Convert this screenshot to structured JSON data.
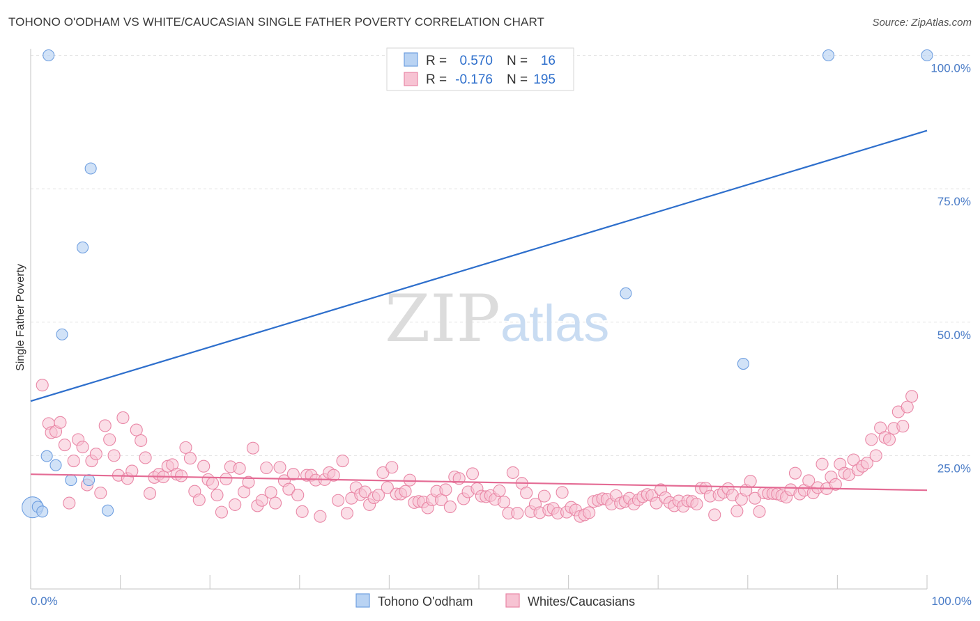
{
  "title": "TOHONO O'ODHAM VS WHITE/CAUCASIAN SINGLE FATHER POVERTY CORRELATION CHART",
  "source": "Source: ZipAtlas.com",
  "watermark": {
    "zip": "ZIP",
    "atlas": "atlas"
  },
  "colors": {
    "blue": "#6f9fe0",
    "blue_fill": "#b9d3f3",
    "blue_line": "#2e6fcc",
    "pink": "#e987a6",
    "pink_fill": "#f7c3d3",
    "pink_line": "#e46b94",
    "tick_text": "#4a7cc7"
  },
  "stats": {
    "r_label": "R =",
    "n_label": "N =",
    "blue": {
      "r": "0.570",
      "n": "16"
    },
    "pink": {
      "r": "-0.176",
      "n": "195"
    }
  },
  "chart_data": {
    "type": "scatter",
    "title": "TOHONO O'ODHAM VS WHITE/CAUCASIAN SINGLE FATHER POVERTY CORRELATION CHART",
    "xlabel": "",
    "ylabel": "Single Father Poverty",
    "xlim": [
      0,
      100
    ],
    "ylim": [
      0,
      100
    ],
    "x_tick_labels": [
      "0.0%",
      "100.0%"
    ],
    "y_ticks": [
      25,
      50,
      75,
      100
    ],
    "y_tick_labels": [
      "25.0%",
      "50.0%",
      "75.0%",
      "100.0%"
    ],
    "grid": true,
    "legend_position": "bottom",
    "series": [
      {
        "name": "Tohono O'odham",
        "color": "#6f9fe0",
        "trend": {
          "x": [
            0,
            100
          ],
          "y": [
            35.2,
            85.9
          ]
        },
        "points": [
          [
            0.2,
            15.3
          ],
          [
            0.8,
            15.4
          ],
          [
            1.3,
            14.5
          ],
          [
            2.0,
            100.0
          ],
          [
            1.8,
            24.9
          ],
          [
            2.8,
            23.2
          ],
          [
            3.5,
            47.7
          ],
          [
            4.5,
            20.4
          ],
          [
            5.8,
            64.0
          ],
          [
            6.5,
            20.4
          ],
          [
            6.7,
            78.8
          ],
          [
            8.6,
            14.7
          ],
          [
            66.4,
            55.4
          ],
          [
            79.5,
            42.2
          ],
          [
            89.0,
            100.0
          ],
          [
            100.0,
            100.0
          ]
        ]
      },
      {
        "name": "Whites/Caucasians",
        "color": "#e987a6",
        "trend": {
          "x": [
            0,
            100
          ],
          "y": [
            21.5,
            18.5
          ]
        },
        "points": [
          [
            1.3,
            38.2
          ],
          [
            2.0,
            31.0
          ],
          [
            2.3,
            29.3
          ],
          [
            2.8,
            29.5
          ],
          [
            3.3,
            31.2
          ],
          [
            3.8,
            27.0
          ],
          [
            4.3,
            16.1
          ],
          [
            4.8,
            24.0
          ],
          [
            5.3,
            28.0
          ],
          [
            5.8,
            26.6
          ],
          [
            6.3,
            19.5
          ],
          [
            6.8,
            24.0
          ],
          [
            7.3,
            25.3
          ],
          [
            7.8,
            18.0
          ],
          [
            8.3,
            30.6
          ],
          [
            8.8,
            28.0
          ],
          [
            9.3,
            25.0
          ],
          [
            9.8,
            21.3
          ],
          [
            10.3,
            32.1
          ],
          [
            10.8,
            20.7
          ],
          [
            11.3,
            22.1
          ],
          [
            11.8,
            29.8
          ],
          [
            12.3,
            27.8
          ],
          [
            12.8,
            24.6
          ],
          [
            13.3,
            17.9
          ],
          [
            13.8,
            20.9
          ],
          [
            14.3,
            21.5
          ],
          [
            14.8,
            21.0
          ],
          [
            15.3,
            23.0
          ],
          [
            15.8,
            23.3
          ],
          [
            16.3,
            21.5
          ],
          [
            16.8,
            21.2
          ],
          [
            17.3,
            26.5
          ],
          [
            17.8,
            24.5
          ],
          [
            18.3,
            18.3
          ],
          [
            18.8,
            16.7
          ],
          [
            19.3,
            23.0
          ],
          [
            19.8,
            20.5
          ],
          [
            20.3,
            19.8
          ],
          [
            20.8,
            17.6
          ],
          [
            21.3,
            14.4
          ],
          [
            21.8,
            20.6
          ],
          [
            22.3,
            22.9
          ],
          [
            22.8,
            15.8
          ],
          [
            23.3,
            22.6
          ],
          [
            23.8,
            18.2
          ],
          [
            24.3,
            20.0
          ],
          [
            24.8,
            26.4
          ],
          [
            25.3,
            15.6
          ],
          [
            25.8,
            16.6
          ],
          [
            26.3,
            22.7
          ],
          [
            26.8,
            18.1
          ],
          [
            27.3,
            16.1
          ],
          [
            27.8,
            22.8
          ],
          [
            28.3,
            20.3
          ],
          [
            28.8,
            18.7
          ],
          [
            29.3,
            21.5
          ],
          [
            29.8,
            17.6
          ],
          [
            30.3,
            14.5
          ],
          [
            30.8,
            21.3
          ],
          [
            31.3,
            21.3
          ],
          [
            31.8,
            20.4
          ],
          [
            32.3,
            13.6
          ],
          [
            32.8,
            20.5
          ],
          [
            33.3,
            21.8
          ],
          [
            33.8,
            21.3
          ],
          [
            34.3,
            16.6
          ],
          [
            34.8,
            24.0
          ],
          [
            35.3,
            14.2
          ],
          [
            35.8,
            17.0
          ],
          [
            36.3,
            19.0
          ],
          [
            36.8,
            17.7
          ],
          [
            37.3,
            18.2
          ],
          [
            37.8,
            15.8
          ],
          [
            38.3,
            17.1
          ],
          [
            38.8,
            17.6
          ],
          [
            39.3,
            21.8
          ],
          [
            39.8,
            19.0
          ],
          [
            40.3,
            22.8
          ],
          [
            40.8,
            17.8
          ],
          [
            41.3,
            17.8
          ],
          [
            41.8,
            18.3
          ],
          [
            42.3,
            20.4
          ],
          [
            42.8,
            16.2
          ],
          [
            43.3,
            16.4
          ],
          [
            43.8,
            16.3
          ],
          [
            44.3,
            15.2
          ],
          [
            44.8,
            16.7
          ],
          [
            45.3,
            18.3
          ],
          [
            45.8,
            16.7
          ],
          [
            46.3,
            18.6
          ],
          [
            46.8,
            15.4
          ],
          [
            47.3,
            21.0
          ],
          [
            47.8,
            20.7
          ],
          [
            48.3,
            16.9
          ],
          [
            48.8,
            18.2
          ],
          [
            49.3,
            21.6
          ],
          [
            49.8,
            18.8
          ],
          [
            50.3,
            17.4
          ],
          [
            50.8,
            17.3
          ],
          [
            51.3,
            17.5
          ],
          [
            51.8,
            16.8
          ],
          [
            52.3,
            18.4
          ],
          [
            52.8,
            16.3
          ],
          [
            53.3,
            14.2
          ],
          [
            53.8,
            21.8
          ],
          [
            54.3,
            14.2
          ],
          [
            54.8,
            19.8
          ],
          [
            55.3,
            18.0
          ],
          [
            55.8,
            14.5
          ],
          [
            56.3,
            15.9
          ],
          [
            56.8,
            14.3
          ],
          [
            57.3,
            17.4
          ],
          [
            57.8,
            14.8
          ],
          [
            58.3,
            15.1
          ],
          [
            58.8,
            14.2
          ],
          [
            59.3,
            18.1
          ],
          [
            59.8,
            14.4
          ],
          [
            60.3,
            15.3
          ],
          [
            60.8,
            14.8
          ],
          [
            61.3,
            13.6
          ],
          [
            61.8,
            13.9
          ],
          [
            62.3,
            14.3
          ],
          [
            62.8,
            16.4
          ],
          [
            63.3,
            16.6
          ],
          [
            63.8,
            16.9
          ],
          [
            64.3,
            16.8
          ],
          [
            64.8,
            15.9
          ],
          [
            65.3,
            17.5
          ],
          [
            65.8,
            16.1
          ],
          [
            66.3,
            16.4
          ],
          [
            66.8,
            17.0
          ],
          [
            67.3,
            15.9
          ],
          [
            67.8,
            16.7
          ],
          [
            68.3,
            17.3
          ],
          [
            68.8,
            17.7
          ],
          [
            69.3,
            17.5
          ],
          [
            69.8,
            16.1
          ],
          [
            70.3,
            18.6
          ],
          [
            70.8,
            17.1
          ],
          [
            71.3,
            16.2
          ],
          [
            71.8,
            15.6
          ],
          [
            72.3,
            16.5
          ],
          [
            72.8,
            15.5
          ],
          [
            73.3,
            16.5
          ],
          [
            73.8,
            16.4
          ],
          [
            74.3,
            15.9
          ],
          [
            74.8,
            18.9
          ],
          [
            75.3,
            18.9
          ],
          [
            75.8,
            17.4
          ],
          [
            76.3,
            13.9
          ],
          [
            76.8,
            17.6
          ],
          [
            77.3,
            18.1
          ],
          [
            77.8,
            18.8
          ],
          [
            78.3,
            17.6
          ],
          [
            78.8,
            14.6
          ],
          [
            79.3,
            16.8
          ],
          [
            79.8,
            18.5
          ],
          [
            80.3,
            20.2
          ],
          [
            80.8,
            17.0
          ],
          [
            81.3,
            14.5
          ],
          [
            81.8,
            18.0
          ],
          [
            82.3,
            17.9
          ],
          [
            82.8,
            17.9
          ],
          [
            83.3,
            17.8
          ],
          [
            83.8,
            17.5
          ],
          [
            84.3,
            17.2
          ],
          [
            84.8,
            18.6
          ],
          [
            85.3,
            21.7
          ],
          [
            85.8,
            17.8
          ],
          [
            86.3,
            18.5
          ],
          [
            86.8,
            20.3
          ],
          [
            87.3,
            18.0
          ],
          [
            87.8,
            19.0
          ],
          [
            88.3,
            23.4
          ],
          [
            88.8,
            18.8
          ],
          [
            89.3,
            21.0
          ],
          [
            89.8,
            19.6
          ],
          [
            90.3,
            23.4
          ],
          [
            90.8,
            21.7
          ],
          [
            91.3,
            21.4
          ],
          [
            91.8,
            24.2
          ],
          [
            92.3,
            22.3
          ],
          [
            92.8,
            23.0
          ],
          [
            93.3,
            23.6
          ],
          [
            93.8,
            28.0
          ],
          [
            94.3,
            25.0
          ],
          [
            94.8,
            30.2
          ],
          [
            95.3,
            28.4
          ],
          [
            95.8,
            28.0
          ],
          [
            96.3,
            30.1
          ],
          [
            96.8,
            33.2
          ],
          [
            97.3,
            30.5
          ],
          [
            97.8,
            34.1
          ],
          [
            98.3,
            36.1
          ]
        ]
      }
    ]
  },
  "legend": {
    "items": [
      {
        "label": "Tohono O'odham"
      },
      {
        "label": "Whites/Caucasians"
      }
    ]
  }
}
